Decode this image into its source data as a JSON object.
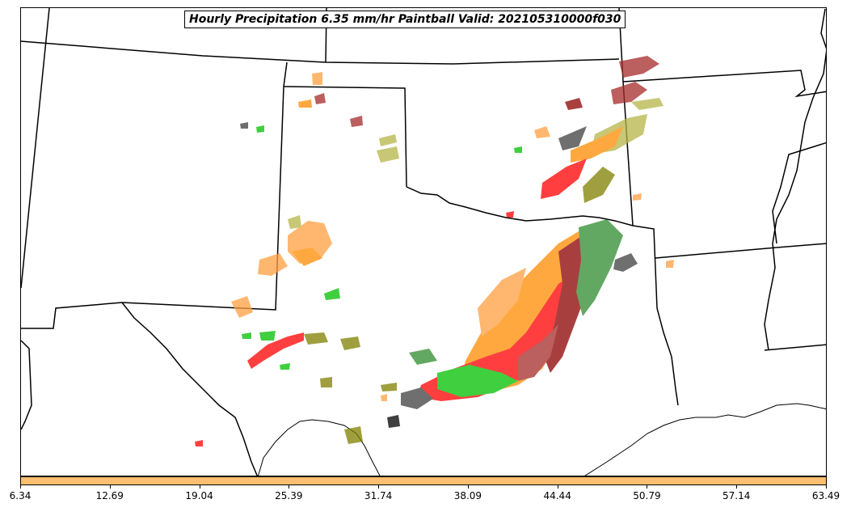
{
  "title": "Hourly Precipitation 6.35 mm/hr Paintball Valid: 202105310000f030",
  "colorbar": {
    "color": "#fdbf6f",
    "ticks": [
      "6.34",
      "12.69",
      "19.04",
      "25.39",
      "31.74",
      "38.09",
      "44.44",
      "50.79",
      "57.14",
      "63.49"
    ]
  },
  "member_colors": {
    "red": "#ff0000",
    "orange": "#ff8c00",
    "light_orange": "#ffa040",
    "dark_red": "#8b0000",
    "brown_red": "#a52a2a",
    "olive": "#808000",
    "khaki": "#b5b548",
    "green": "#00c000",
    "dark_green": "#2e8b2e",
    "gray": "#404040",
    "black": "#000000"
  }
}
